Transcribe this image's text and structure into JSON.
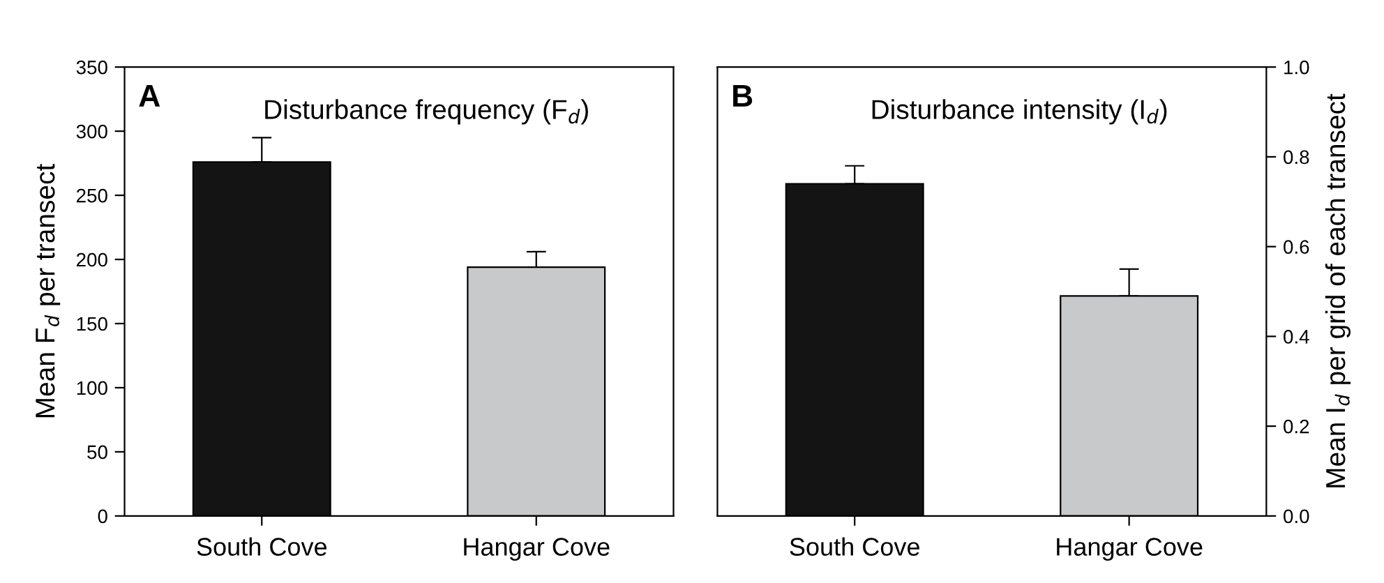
{
  "chart_data": [
    {
      "type": "bar",
      "title": "Disturbance frequency (F$_{d}$)",
      "annotations": [
        "A"
      ],
      "ylabel": "Mean F$_{d}$ per transect",
      "categories": [
        "South Cove",
        "Hangar Cove"
      ],
      "series": [
        {
          "colors": [
            "#141414",
            "#c8c9cb"
          ],
          "values": [
            276,
            194
          ],
          "errors": [
            [
              276,
              295
            ],
            [
              194,
              206
            ]
          ]
        }
      ],
      "ylim": [
        0,
        350
      ],
      "yticks": [
        0,
        50,
        100,
        150,
        200,
        250,
        300,
        350
      ],
      "grid": false,
      "legend": false
    },
    {
      "type": "bar",
      "title": "Disturbance intensity (I$_{d}$)",
      "annotations": [
        "B"
      ],
      "y2label": "Mean I$_{d}$ per grid of each transect",
      "categories": [
        "South Cove",
        "Hangar Cove"
      ],
      "series": [
        {
          "colors": [
            "#141414",
            "#c8c9cb"
          ],
          "values": [
            0.74,
            0.49
          ],
          "errors": [
            [
              0.74,
              0.78
            ],
            [
              0.49,
              0.55
            ]
          ],
          "axis": "y2"
        }
      ],
      "y2lim": [
        0,
        1.0
      ],
      "y2ticks": [
        {
          "value": 0,
          "label": "0.0"
        },
        0.2,
        0.4,
        0.6,
        0.8,
        {
          "value": 1.0,
          "label": "1.0"
        }
      ],
      "grid": false,
      "legend": false
    }
  ]
}
